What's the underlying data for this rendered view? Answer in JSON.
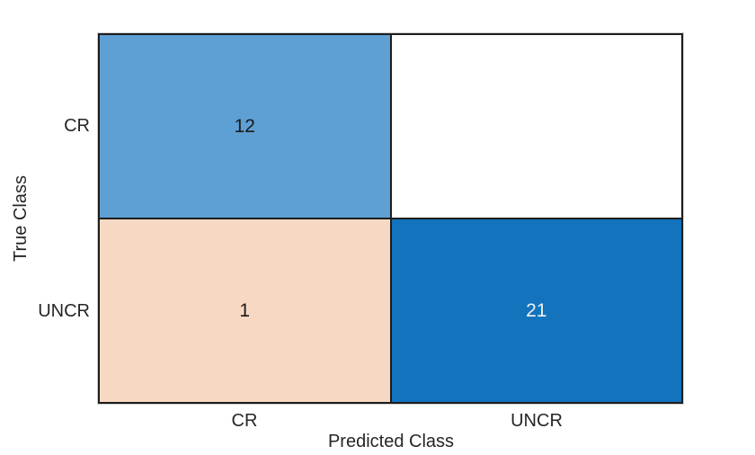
{
  "chart_data": {
    "type": "heatmap",
    "subtype": "confusion-matrix",
    "title": "",
    "xlabel": "Predicted Class",
    "ylabel": "True Class",
    "classes": [
      "CR",
      "UNCR"
    ],
    "x_ticks": [
      "CR",
      "UNCR"
    ],
    "y_ticks": [
      "CR",
      "UNCR"
    ],
    "matrix": [
      [
        12,
        0
      ],
      [
        1,
        21
      ]
    ],
    "cells": [
      {
        "true_class": "CR",
        "predicted_class": "CR",
        "value": "12",
        "bg": "#5e9fd4",
        "text": "#1a1a1a"
      },
      {
        "true_class": "CR",
        "predicted_class": "UNCR",
        "value": "",
        "bg": "#ffffff",
        "text": "#1a1a1a"
      },
      {
        "true_class": "UNCR",
        "predicted_class": "CR",
        "value": "1",
        "bg": "#f7d9c3",
        "text": "#1a1a1a"
      },
      {
        "true_class": "UNCR",
        "predicted_class": "UNCR",
        "value": "21",
        "bg": "#1373bd",
        "text": "#f2f2f2"
      }
    ],
    "layout": {
      "grid_on": false,
      "legend": "none",
      "grid_line_color": "#1d1d1d",
      "axis_text_color": "#262626",
      "background": "#ffffff"
    }
  }
}
